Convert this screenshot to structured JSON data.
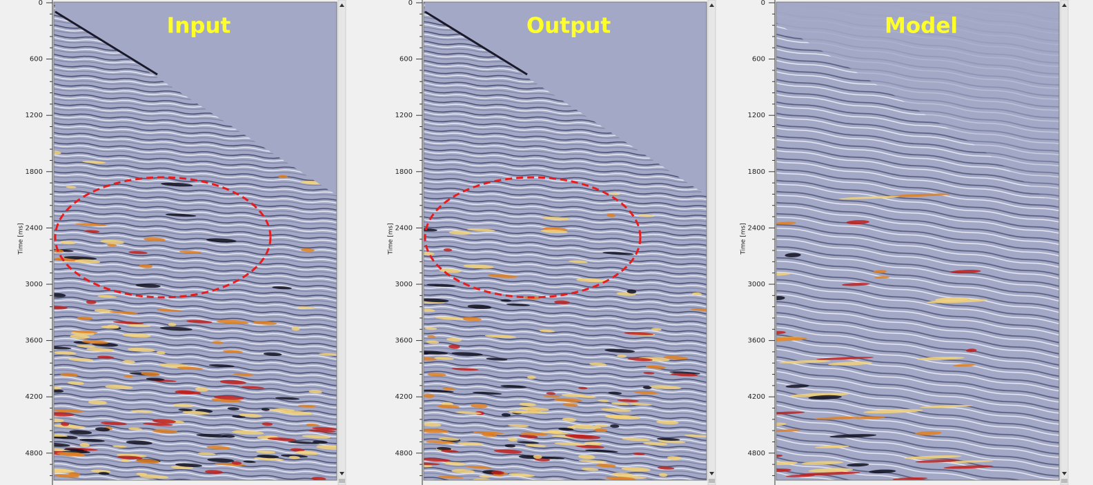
{
  "panels": [
    {
      "title": "Input",
      "axis_label": "Time [ms]",
      "ticks": [
        0,
        600,
        1200,
        1800,
        2400,
        3000,
        3600,
        4200,
        4800
      ]
    },
    {
      "title": "Output",
      "axis_label": "Time [ms]",
      "ticks": [
        0,
        600,
        1200,
        1800,
        2400,
        3000,
        3600,
        4200,
        4800
      ]
    },
    {
      "title": "Model",
      "axis_label": "Time [ms]",
      "ticks": [
        0,
        600,
        1200,
        1800,
        2400,
        3000,
        3600,
        4200,
        4800
      ]
    }
  ]
}
